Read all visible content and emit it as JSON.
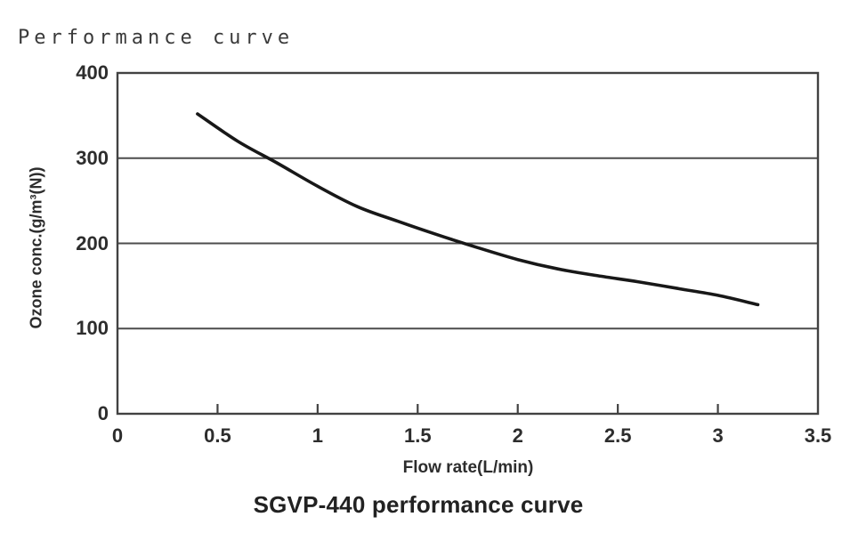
{
  "page": {
    "title": "Performance curve",
    "caption": "SGVP-440 performance curve"
  },
  "chart_data": {
    "type": "line",
    "title": "Performance curve",
    "caption": "SGVP-440 performance curve",
    "xlabel": "Flow rate(L/min)",
    "ylabel": "Ozone conc.(g/m³(N))",
    "xlim": [
      0,
      3.5
    ],
    "ylim": [
      0,
      400
    ],
    "x_ticks": [
      0,
      0.5,
      1,
      1.5,
      2,
      2.5,
      3,
      3.5
    ],
    "x_tick_labels": [
      "0",
      "0.5",
      "1",
      "1.5",
      "2",
      "2.5",
      "3",
      "3.5"
    ],
    "y_ticks": [
      400,
      300,
      200,
      100,
      0
    ],
    "y_tick_labels": [
      "400",
      "300",
      "200",
      "100",
      "0"
    ],
    "y_gridlines": [
      300,
      200,
      100
    ],
    "grid": "horizontal",
    "legend": "none",
    "series": [
      {
        "name": "SGVP-440",
        "x": [
          0.4,
          0.6,
          0.8,
          1.0,
          1.2,
          1.4,
          1.6,
          1.8,
          2.0,
          2.2,
          2.4,
          2.6,
          2.8,
          3.0,
          3.2
        ],
        "y": [
          352,
          320,
          294,
          267,
          243,
          226,
          210,
          195,
          181,
          170,
          162,
          155,
          147,
          139,
          128
        ]
      }
    ]
  },
  "colors": {
    "background": "#ffffff",
    "axis_border": "#424242",
    "gridline": "#4c4c4c",
    "curve": "#181818",
    "text": "#2d2d2d",
    "title_text": "#3a3a3a",
    "caption_text": "#222222"
  }
}
